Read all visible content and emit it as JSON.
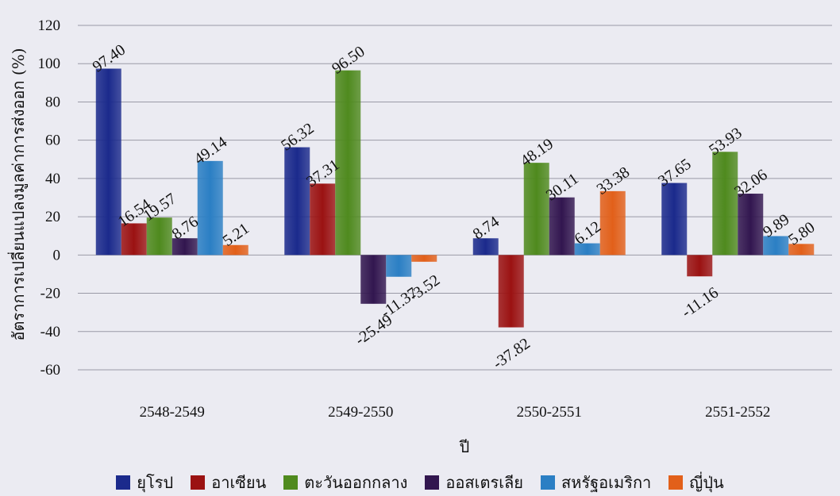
{
  "chart_data": {
    "type": "bar",
    "title": "",
    "xlabel": "ปี",
    "ylabel": "อัตราการเปลี่ยนแปลงมูลค่าการส่งออก (%)",
    "ylim": [
      -60,
      120
    ],
    "yticks": [
      120,
      100,
      80,
      60,
      40,
      20,
      0,
      -20,
      -40,
      -60
    ],
    "grid": true,
    "legend_position": "bottom",
    "categories": [
      "2548-2549",
      "2549-2550",
      "2550-2551",
      "2551-2552"
    ],
    "series": [
      {
        "name": "ยุโรป",
        "color": "#1b2a8c",
        "values": [
          97.4,
          56.32,
          8.74,
          37.65
        ],
        "labels": [
          "97.40",
          "56.32",
          "8.74",
          "37.65"
        ]
      },
      {
        "name": "อาเซียน",
        "color": "#9b1212",
        "values": [
          16.54,
          37.31,
          -37.82,
          -11.16
        ],
        "labels": [
          "16.54",
          "37.31",
          "-37.82",
          "-11.16"
        ]
      },
      {
        "name": "ตะวันออกกลาง",
        "color": "#4f8a1e",
        "values": [
          19.57,
          96.5,
          48.19,
          53.93
        ],
        "labels": [
          "19.57",
          "96.50",
          "48.19",
          "53.93"
        ]
      },
      {
        "name": "ออสเตรเลีย",
        "color": "#32164f",
        "values": [
          8.76,
          -25.49,
          30.11,
          32.06
        ],
        "labels": [
          "8.76",
          "-25.49",
          "30.11",
          "32.06"
        ]
      },
      {
        "name": "สหรัฐอเมริกา",
        "color": "#2b7fc4",
        "values": [
          49.14,
          -11.37,
          6.12,
          9.89
        ],
        "labels": [
          "49.14",
          "-11.37",
          "6.12",
          "9.89"
        ]
      },
      {
        "name": "ญี่ปุ่น",
        "color": "#e2601a",
        "values": [
          5.21,
          -3.52,
          33.38,
          5.8
        ],
        "labels": [
          "5.21",
          "-3.52",
          "33.38",
          "5.80"
        ]
      }
    ]
  }
}
